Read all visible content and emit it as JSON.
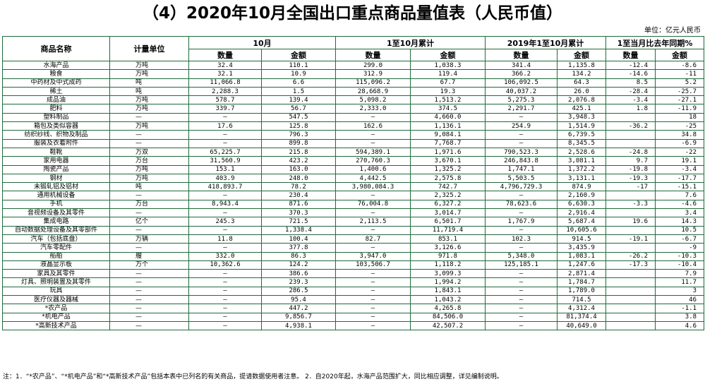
{
  "title": "（4）2020年10月全国出口重点商品量值表（人民币值）",
  "unit_note": "单位：亿元人民币",
  "headers": {
    "name": "商品名称",
    "unit": "计量单位",
    "oct": "10月",
    "ytd": "1至10月累计",
    "ytd2019": "2019年1至10月累计",
    "yoy": "1至当月比去年同期%",
    "qty": "数量",
    "amt": "金额"
  },
  "rows": [
    [
      "水海产品",
      "万吨",
      "32.4",
      "110.1",
      "299.0",
      "1,038.3",
      "341.4",
      "1,135.8",
      "-12.4",
      "-8.6"
    ],
    [
      "粮食",
      "万吨",
      "32.1",
      "10.9",
      "312.9",
      "119.4",
      "366.2",
      "134.2",
      "-14.6",
      "-11"
    ],
    [
      "中药材及中式成药",
      "吨",
      "11,066.8",
      "6.6",
      "115,096.2",
      "67.7",
      "106,092.5",
      "64.3",
      "8.5",
      "5.2"
    ],
    [
      "稀土",
      "吨",
      "2,288.3",
      "1.5",
      "28,668.9",
      "19.3",
      "40,037.2",
      "26.0",
      "-28.4",
      "-25.7"
    ],
    [
      "成品油",
      "万吨",
      "578.7",
      "139.4",
      "5,098.2",
      "1,513.2",
      "5,275.3",
      "2,076.8",
      "-3.4",
      "-27.1"
    ],
    [
      "肥料",
      "万吨",
      "339.7",
      "56.7",
      "2,333.0",
      "374.5",
      "2,291.7",
      "425.1",
      "1.8",
      "-11.9"
    ],
    [
      "塑料制品",
      "—",
      "–",
      "547.5",
      "–",
      "4,660.0",
      "–",
      "3,948.3",
      "",
      "18"
    ],
    [
      "箱包及类似容器",
      "万吨",
      "17.6",
      "125.8",
      "162.6",
      "1,136.1",
      "254.9",
      "1,514.9",
      "-36.2",
      "-25"
    ],
    [
      "纺织纱线、织物及制品",
      "—",
      "–",
      "796.3",
      "–",
      "9,084.1",
      "–",
      "6,739.5",
      "",
      "34.8"
    ],
    [
      "服装及衣着附件",
      "—",
      "–",
      "899.8",
      "–",
      "7,768.7",
      "–",
      "8,345.5",
      "",
      "-6.9"
    ],
    [
      "鞋靴",
      "万双",
      "65,225.7",
      "215.8",
      "594,389.1",
      "1,971.6",
      "790,523.3",
      "2,528.6",
      "-24.8",
      "-22"
    ],
    [
      "家用电器",
      "万台",
      "31,560.9",
      "423.2",
      "270,760.3",
      "3,670.1",
      "246,843.8",
      "3,081.1",
      "9.7",
      "19.1"
    ],
    [
      "陶瓷产品",
      "万吨",
      "153.1",
      "163.0",
      "1,400.6",
      "1,325.2",
      "1,747.1",
      "1,372.2",
      "-19.8",
      "-3.4"
    ],
    [
      "钢材",
      "万吨",
      "403.9",
      "248.0",
      "4,442.5",
      "2,575.8",
      "5,503.5",
      "3,131.1",
      "-19.3",
      "-17.7"
    ],
    [
      "未锻轧铝及铝材",
      "吨",
      "418,893.7",
      "78.2",
      "3,980,084.3",
      "742.7",
      "4,796,729.3",
      "874.9",
      "-17",
      "-15.1"
    ],
    [
      "通用机械设备",
      "—",
      "–",
      "230.4",
      "–",
      "2,325.2",
      "–",
      "2,160.9",
      "",
      "7.6"
    ],
    [
      "手机",
      "万台",
      "8,943.4",
      "871.6",
      "76,004.8",
      "6,327.2",
      "78,623.6",
      "6,630.3",
      "-3.3",
      "-4.6"
    ],
    [
      "音视频设备及其零件",
      "—",
      "–",
      "370.3",
      "–",
      "3,014.7",
      "–",
      "2,916.4",
      "",
      "3.4"
    ],
    [
      "集成电路",
      "亿个",
      "245.3",
      "721.5",
      "2,113.5",
      "6,501.7",
      "1,767.9",
      "5,687.4",
      "19.6",
      "14.3"
    ],
    [
      "自动数据处理设备及其零部件",
      "—",
      "–",
      "1,338.4",
      "–",
      "11,719.4",
      "–",
      "10,605.6",
      "",
      "10.5"
    ],
    [
      "汽车（包括底盘）",
      "万辆",
      "11.8",
      "100.4",
      "82.7",
      "853.1",
      "102.3",
      "914.5",
      "-19.1",
      "-6.7"
    ],
    [
      "汽车零配件",
      "—",
      "–",
      "377.8",
      "–",
      "3,126.6",
      "–",
      "3,435.9",
      "",
      "-9"
    ],
    [
      "船舶",
      "艘",
      "332.0",
      "86.3",
      "3,947.0",
      "971.8",
      "5,348.0",
      "1,083.1",
      "-26.2",
      "-10.3"
    ],
    [
      "液晶显示板",
      "万个",
      "10,362.6",
      "124.2",
      "103,506.7",
      "1,118.2",
      "125,185.1",
      "1,247.6",
      "-17.3",
      "-10.4"
    ],
    [
      "家具及其零件",
      "—",
      "–",
      "386.6",
      "–",
      "3,099.3",
      "–",
      "2,871.4",
      "",
      "7.9"
    ],
    [
      "灯具、照明装置及其零件",
      "—",
      "–",
      "239.3",
      "–",
      "1,994.2",
      "–",
      "1,784.7",
      "",
      "11.7"
    ],
    [
      "玩具",
      "—",
      "–",
      "286.5",
      "–",
      "1,843.1",
      "–",
      "1,789.0",
      "",
      "3"
    ],
    [
      "医疗仪器及器械",
      "—",
      "–",
      "95.4",
      "–",
      "1,043.2",
      "–",
      "714.5",
      "",
      "46"
    ],
    [
      "*农产品",
      "—",
      "–",
      "447.2",
      "–",
      "4,265.8",
      "–",
      "4,312.4",
      "",
      "-1.1"
    ],
    [
      "*机电产品",
      "—",
      "–",
      "9,856.7",
      "–",
      "84,506.0",
      "–",
      "81,374.4",
      "",
      "3.8"
    ],
    [
      "*高新技术产品",
      "—",
      "–",
      "4,938.1",
      "–",
      "42,507.2",
      "–",
      "40,649.0",
      "",
      "4.6"
    ]
  ],
  "footnote": "注：1．“*农产品”、“*机电产品”和“*高新技术产品”包括本表中已列名的有关商品，提请数据使用者注意。 2．自2020年起，水海产品范围扩大，同比相应调整，详见编制说明。"
}
